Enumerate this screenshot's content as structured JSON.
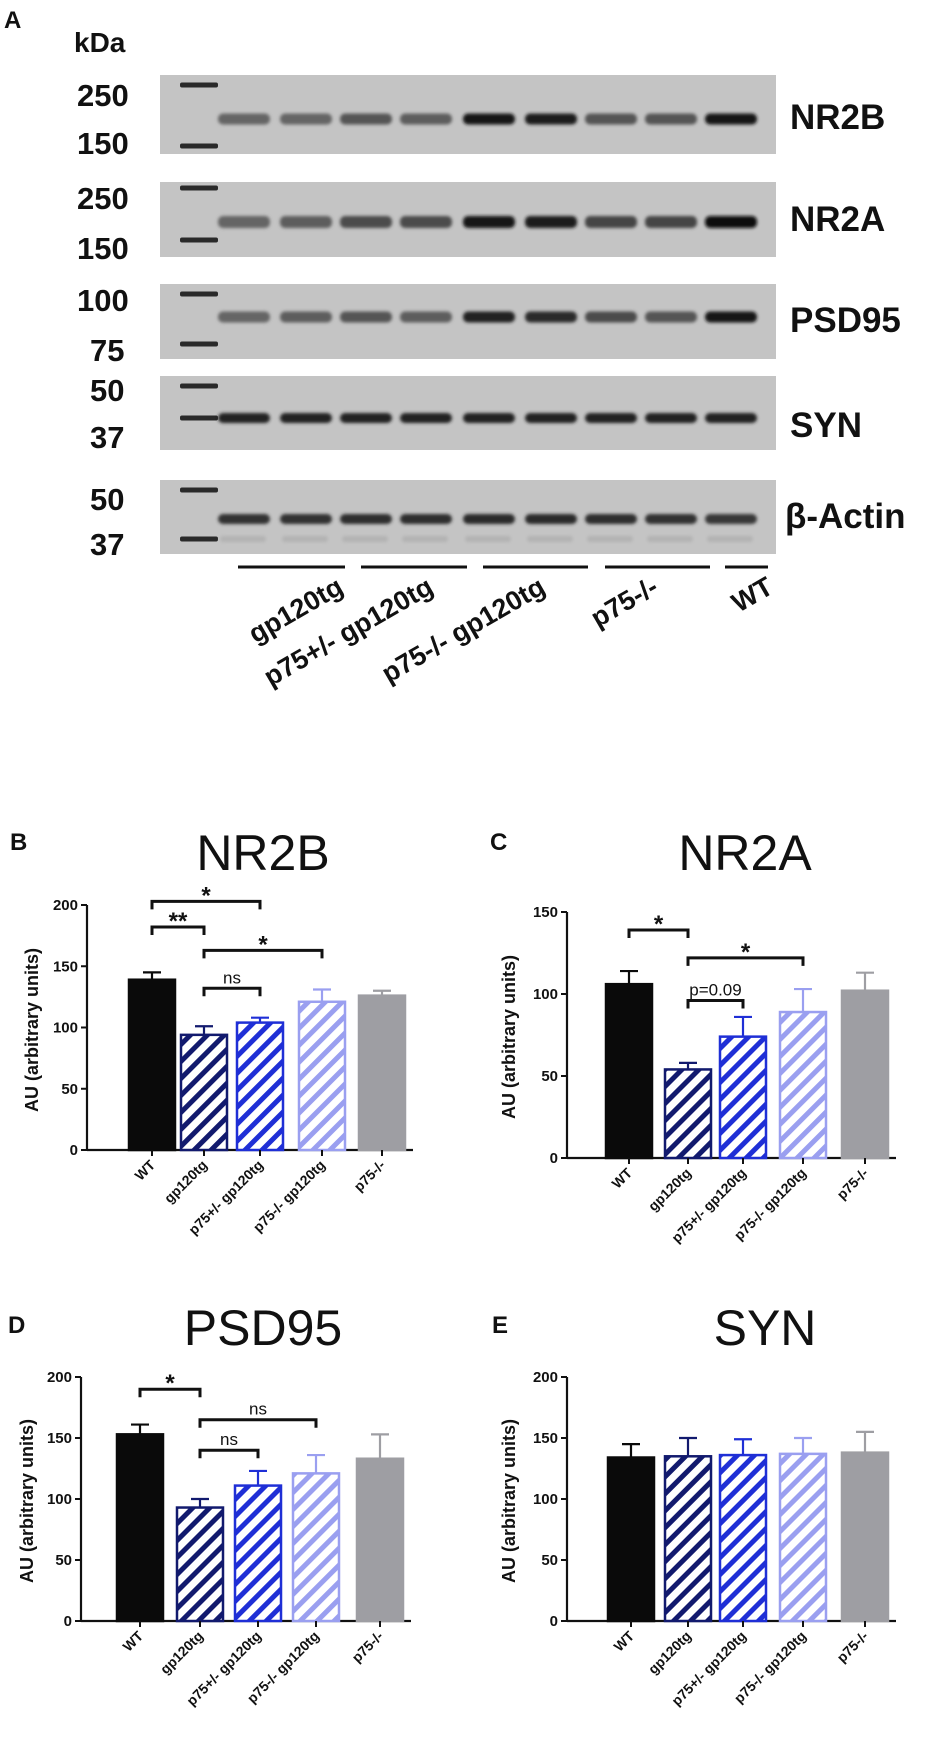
{
  "blot": {
    "panel_letter": "A",
    "unit_label": "kDa",
    "group_labels": [
      "gp120tg",
      "p75+/- gp120tg",
      "p75-/- gp120tg",
      "p75-/-",
      "WT"
    ],
    "strips": [
      {
        "protein": "NR2B",
        "markers": [
          "250",
          "150"
        ],
        "intensity": [
          0.45,
          0.45,
          0.55,
          0.5,
          0.95,
          0.9,
          0.55,
          0.55,
          0.95
        ]
      },
      {
        "protein": "NR2A",
        "markers": [
          "250",
          "150"
        ],
        "intensity": [
          0.45,
          0.5,
          0.6,
          0.6,
          0.95,
          0.9,
          0.65,
          0.65,
          1.0
        ]
      },
      {
        "protein": "PSD95",
        "markers": [
          "100",
          "75"
        ],
        "intensity": [
          0.45,
          0.5,
          0.55,
          0.5,
          0.85,
          0.8,
          0.6,
          0.55,
          0.95
        ]
      },
      {
        "protein": "SYN",
        "markers": [
          "50",
          "37"
        ],
        "intensity": [
          0.85,
          0.85,
          0.85,
          0.85,
          0.85,
          0.85,
          0.85,
          0.85,
          0.85
        ]
      },
      {
        "protein": "β-Actin",
        "markers": [
          "50",
          "37"
        ],
        "intensity": [
          0.75,
          0.75,
          0.78,
          0.78,
          0.8,
          0.8,
          0.78,
          0.75,
          0.72
        ]
      }
    ]
  },
  "chart_data": [
    {
      "type": "bar",
      "panel_letter": "B",
      "title": "NR2B",
      "ylabel": "AU (arbitrary units)",
      "ylim": [
        0,
        200
      ],
      "yticks": [
        "0",
        "50",
        "100",
        "150",
        "200"
      ],
      "categories": [
        "WT",
        "gp120tg",
        "p75+/- gp120tg",
        "p75-/- gp120tg",
        "p75-/-"
      ],
      "values": [
        139,
        94,
        104,
        121,
        126
      ],
      "errors": [
        6,
        7,
        4,
        10,
        4
      ],
      "annotations": [
        {
          "from": 0,
          "to": 2,
          "y": 203,
          "label": "*"
        },
        {
          "from": 0,
          "to": 1,
          "y": 182,
          "label": "**"
        },
        {
          "from": 1,
          "to": 3,
          "y": 163,
          "label": "*"
        },
        {
          "from": 1,
          "to": 2,
          "y": 132,
          "label": "ns"
        }
      ]
    },
    {
      "type": "bar",
      "panel_letter": "C",
      "title": "NR2A",
      "ylabel": "AU (arbitrary units)",
      "ylim": [
        0,
        150
      ],
      "yticks": [
        "0",
        "50",
        "100",
        "150"
      ],
      "categories": [
        "WT",
        "gp120tg",
        "p75+/- gp120tg",
        "p75-/- gp120tg",
        "p75-/-"
      ],
      "values": [
        106,
        54,
        74,
        89,
        102
      ],
      "errors": [
        8,
        4,
        12,
        14,
        11
      ],
      "annotations": [
        {
          "from": 0,
          "to": 1,
          "y": 139,
          "label": "*"
        },
        {
          "from": 1,
          "to": 3,
          "y": 122,
          "label": "*"
        },
        {
          "from": 1,
          "to": 2,
          "y": 96,
          "label": "p=0.09"
        }
      ]
    },
    {
      "type": "bar",
      "panel_letter": "D",
      "title": "PSD95",
      "ylabel": "AU (arbitrary units)",
      "ylim": [
        0,
        200
      ],
      "yticks": [
        "0",
        "50",
        "100",
        "150",
        "200"
      ],
      "categories": [
        "WT",
        "gp120tg",
        "p75+/- gp120tg",
        "p75-/- gp120tg",
        "p75-/-"
      ],
      "values": [
        153,
        93,
        111,
        121,
        133
      ],
      "errors": [
        8,
        7,
        12,
        15,
        20
      ],
      "annotations": [
        {
          "from": 0,
          "to": 1,
          "y": 190,
          "label": "*"
        },
        {
          "from": 1,
          "to": 3,
          "y": 165,
          "label": "ns"
        },
        {
          "from": 1,
          "to": 2,
          "y": 140,
          "label": "ns"
        }
      ]
    },
    {
      "type": "bar",
      "panel_letter": "E",
      "title": "SYN",
      "ylabel": "AU (arbitrary units)",
      "ylim": [
        0,
        200
      ],
      "yticks": [
        "0",
        "50",
        "100",
        "150",
        "200"
      ],
      "categories": [
        "WT",
        "gp120tg",
        "p75+/- gp120tg",
        "p75-/- gp120tg",
        "p75-/-"
      ],
      "values": [
        134,
        135,
        136,
        137,
        138
      ],
      "errors": [
        11,
        15,
        13,
        13,
        17
      ],
      "annotations": []
    }
  ],
  "colors": {
    "wt": "#0a0a0a",
    "gp120tg": "#121a6e",
    "p75het_gp120tg": "#1f2fd6",
    "p75ko_gp120tg": "#9a9ff0",
    "p75ko": "#9e9ea3"
  }
}
